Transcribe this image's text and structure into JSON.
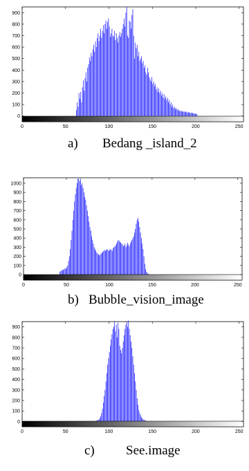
{
  "chart_data": [
    {
      "type": "bar",
      "caption_letter": "a)",
      "caption_text": "Bedang _island_2",
      "xlim": [
        0,
        255
      ],
      "ylim": [
        -50,
        950
      ],
      "xticks": [
        0,
        50,
        100,
        150,
        200,
        250
      ],
      "yticks": [
        0,
        100,
        200,
        300,
        400,
        500,
        600,
        700,
        800,
        900
      ],
      "bar_color": "#1a1aff",
      "colorbar": "grayscale",
      "values_start_x": 62,
      "values": [
        50,
        120,
        80,
        200,
        150,
        210,
        120,
        250,
        310,
        220,
        330,
        380,
        300,
        420,
        450,
        510,
        480,
        550,
        520,
        580,
        620,
        560,
        650,
        600,
        680,
        720,
        650,
        700,
        760,
        680,
        740,
        790,
        720,
        800,
        830,
        760,
        820,
        850,
        780,
        690,
        720,
        760,
        700,
        690,
        740,
        660,
        720,
        680,
        640,
        700,
        730,
        690,
        720,
        760,
        800,
        850,
        780,
        900,
        950,
        700,
        680,
        830,
        820,
        760,
        880,
        930,
        700,
        500,
        640,
        590,
        620,
        520,
        560,
        480,
        500,
        520,
        460,
        480,
        420,
        440,
        380,
        360,
        420,
        380,
        340,
        320,
        300,
        340,
        280,
        300,
        260,
        280,
        230,
        250,
        210,
        240,
        200,
        220,
        180,
        200,
        160,
        190,
        150,
        170,
        140,
        160,
        120,
        140,
        100,
        120,
        80,
        100,
        70,
        80,
        60,
        70,
        55,
        60,
        45,
        50,
        40,
        45,
        38,
        42,
        35,
        40,
        32,
        38,
        30,
        35,
        28,
        30,
        25,
        30,
        22,
        25,
        20,
        22,
        18,
        15
      ]
    },
    {
      "type": "bar",
      "caption_letter": "b)",
      "caption_text": "Bubble_vision_image",
      "xlim": [
        0,
        255
      ],
      "ylim": [
        -60,
        1060
      ],
      "xticks": [
        0,
        50,
        100,
        150,
        200,
        250
      ],
      "yticks": [
        0,
        100,
        200,
        300,
        400,
        500,
        600,
        700,
        800,
        900,
        1000
      ],
      "bar_color": "#1a1aff",
      "colorbar": "grayscale",
      "values_start_x": 42,
      "values": [
        30,
        40,
        50,
        45,
        55,
        60,
        70,
        65,
        80,
        100,
        150,
        200,
        280,
        380,
        480,
        600,
        700,
        800,
        880,
        950,
        1000,
        1050,
        1050,
        1020,
        1050,
        980,
        1000,
        950,
        900,
        850,
        820,
        760,
        700,
        640,
        580,
        520,
        480,
        420,
        380,
        340,
        300,
        280,
        260,
        240,
        230,
        220,
        210,
        220,
        230,
        240,
        250,
        260,
        270,
        260,
        270,
        280,
        270,
        260,
        270,
        280,
        270,
        260,
        290,
        300,
        310,
        320,
        340,
        360,
        380,
        370,
        360,
        350,
        340,
        330,
        310,
        320,
        340,
        300,
        320,
        350,
        330,
        310,
        340,
        360,
        380,
        400,
        420,
        460,
        500,
        560,
        600,
        620,
        580,
        520,
        460,
        400,
        340,
        280,
        200,
        120,
        60,
        30,
        20,
        10
      ]
    },
    {
      "type": "bar",
      "caption_letter": "c)",
      "caption_text": "See.image",
      "xlim": [
        0,
        255
      ],
      "ylim": [
        -50,
        950
      ],
      "xticks": [
        0,
        50,
        100,
        150,
        200,
        250
      ],
      "yticks": [
        0,
        100,
        200,
        300,
        400,
        500,
        600,
        700,
        800,
        900
      ],
      "bar_color": "#1a1aff",
      "colorbar": "grayscale",
      "values_start_x": 84,
      "values": [
        5,
        8,
        10,
        15,
        20,
        30,
        50,
        80,
        120,
        180,
        240,
        300,
        380,
        460,
        540,
        600,
        660,
        720,
        780,
        830,
        880,
        900,
        950,
        860,
        920,
        800,
        940,
        880,
        720,
        680,
        650,
        700,
        760,
        820,
        880,
        920,
        950,
        900,
        960,
        880,
        820,
        760,
        700,
        620,
        540,
        460,
        380,
        300,
        220,
        160,
        110,
        80,
        60,
        40,
        30,
        20,
        15,
        10,
        8,
        5,
        4,
        3,
        2
      ]
    }
  ]
}
